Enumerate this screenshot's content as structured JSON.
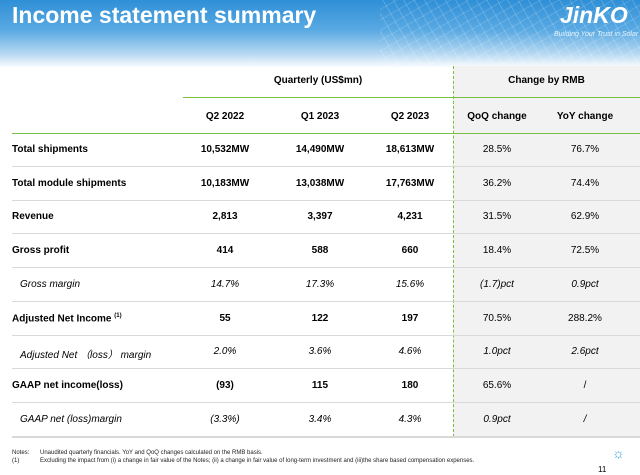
{
  "header": {
    "title": "Income statement summary",
    "logo": "JinKO",
    "tagline": "Building Your Trust in Solar"
  },
  "table": {
    "group_quarterly": "Quarterly (US$mn)",
    "group_change": "Change by RMB",
    "columns": [
      "Q2 2022",
      "Q1 2023",
      "Q2 2023",
      "QoQ change",
      "YoY change"
    ],
    "rows": [
      {
        "label": "Total shipments",
        "values": [
          "10,532MW",
          "14,490MW",
          "18,613MW"
        ],
        "changes": [
          "28.5%",
          "76.7%"
        ]
      },
      {
        "label": "Total module shipments",
        "values": [
          "10,183MW",
          "13,038MW",
          "17,763MW"
        ],
        "changes": [
          "36.2%",
          "74.4%"
        ]
      },
      {
        "label": "Revenue",
        "values": [
          "2,813",
          "3,397",
          "4,231"
        ],
        "changes": [
          "31.5%",
          "62.9%"
        ]
      },
      {
        "label": "Gross profit",
        "values": [
          "414",
          "588",
          "660"
        ],
        "changes": [
          "18.4%",
          "72.5%"
        ]
      },
      {
        "label": "Gross margin",
        "italic": true,
        "values": [
          "14.7%",
          "17.3%",
          "15.6%"
        ],
        "changes": [
          "(1.7)pct",
          "0.9pct"
        ]
      },
      {
        "label": "Adjusted Net Income",
        "sup": "(1)",
        "values": [
          "55",
          "122",
          "197"
        ],
        "changes": [
          "70.5%",
          "288.2%"
        ]
      },
      {
        "label": "Adjusted Net （loss） margin",
        "italic": true,
        "values": [
          "2.0%",
          "3.6%",
          "4.6%"
        ],
        "changes": [
          "1.0pct",
          "2.6pct"
        ]
      },
      {
        "label": "GAAP net income(loss)",
        "values": [
          "(93)",
          "115",
          "180"
        ],
        "changes": [
          "65.6%",
          "/"
        ]
      },
      {
        "label": "GAAP net (loss)margin",
        "italic": true,
        "values": [
          "(3.3%)",
          "3.4%",
          "4.3%"
        ],
        "changes": [
          "0.9pct",
          "/"
        ]
      }
    ]
  },
  "notes": {
    "label": "Notes:",
    "text": "Unaudited quarterly financials. YoY and QoQ changes calculated on the RMB basis.",
    "fn_label": "(1)",
    "fn_text": "Excluding the impact from (i) a change in fair value of the Notes; (ii) a change in fair value of long-term investment and (iii)the share based compensation expenses."
  },
  "page_number": "11",
  "colors": {
    "header_blue": "#2f8fd6",
    "accent_green": "#7ac143",
    "panel_gray": "#f2f2f2"
  }
}
